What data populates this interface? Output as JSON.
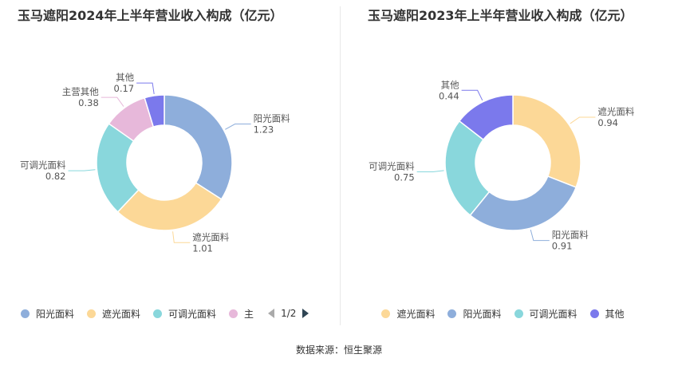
{
  "chart_data": [
    {
      "type": "pie",
      "title": "玉马遮阳2024年上半年营业收入构成（亿元）",
      "slices": [
        {
          "name": "阳光面料",
          "value": 1.23,
          "color": "#8eaedb"
        },
        {
          "name": "遮光面料",
          "value": 1.01,
          "color": "#fcd897"
        },
        {
          "name": "可调光面料",
          "value": 0.82,
          "color": "#89d7dc"
        },
        {
          "name": "主营其他",
          "value": 0.38,
          "color": "#e7b8da"
        },
        {
          "name": "其他",
          "value": 0.17,
          "color": "#7b79ec"
        }
      ],
      "legend": {
        "items": [
          "阳光面料",
          "遮光面料",
          "可调光面料",
          "主"
        ],
        "page": "1/2",
        "placement": "bottom"
      }
    },
    {
      "type": "pie",
      "title": "玉马遮阳2023年上半年营业收入构成（亿元）",
      "slices": [
        {
          "name": "遮光面料",
          "value": 0.94,
          "color": "#fcd897"
        },
        {
          "name": "阳光面料",
          "value": 0.91,
          "color": "#8eaedb"
        },
        {
          "name": "可调光面料",
          "value": 0.75,
          "color": "#89d7dc"
        },
        {
          "name": "其他",
          "value": 0.44,
          "color": "#7b79ec"
        }
      ],
      "legend": {
        "items": [
          "遮光面料",
          "阳光面料",
          "可调光面料",
          "其他"
        ],
        "placement": "bottom"
      }
    }
  ],
  "footer": {
    "source": "数据来源：恒生聚源"
  }
}
